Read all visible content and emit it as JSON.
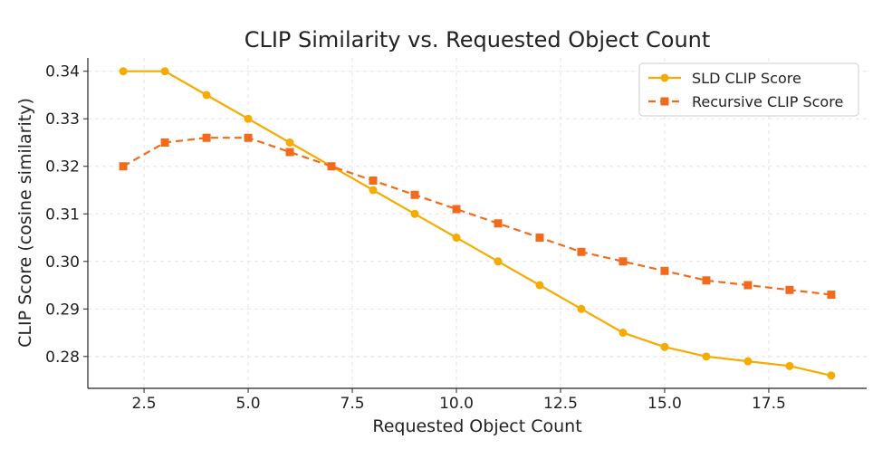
{
  "chart_data": {
    "type": "line",
    "title": "CLIP Similarity vs. Requested Object Count",
    "xlabel": "Requested Object Count",
    "ylabel": "CLIP Score (cosine similarity)",
    "x": [
      2,
      3,
      4,
      5,
      6,
      7,
      8,
      9,
      10,
      11,
      12,
      13,
      14,
      15,
      16,
      17,
      18,
      19
    ],
    "xlim": [
      1.15,
      19.85
    ],
    "ylim": [
      0.2733,
      0.3428
    ],
    "x_ticks": [
      "2.5",
      "5.0",
      "7.5",
      "10.0",
      "12.5",
      "15.0",
      "17.5"
    ],
    "y_ticks": [
      "0.28",
      "0.29",
      "0.30",
      "0.31",
      "0.32",
      "0.33",
      "0.34"
    ],
    "grid": true,
    "legend_position": "top-right",
    "series": [
      {
        "name": "SLD CLIP Score",
        "color": "#f5ab00",
        "line_style": "solid",
        "marker": "circle",
        "values": [
          0.34,
          0.34,
          0.335,
          0.33,
          0.325,
          0.32,
          0.315,
          0.31,
          0.305,
          0.3,
          0.295,
          0.29,
          0.285,
          0.282,
          0.28,
          0.279,
          0.278,
          0.276
        ]
      },
      {
        "name": "Recursive CLIP Score",
        "color": "#f26b1d",
        "line_style": "dashed",
        "marker": "square",
        "values": [
          0.32,
          0.325,
          0.326,
          0.326,
          0.323,
          0.32,
          0.317,
          0.314,
          0.311,
          0.308,
          0.305,
          0.302,
          0.3,
          0.298,
          0.296,
          0.295,
          0.294,
          0.293
        ]
      }
    ]
  }
}
